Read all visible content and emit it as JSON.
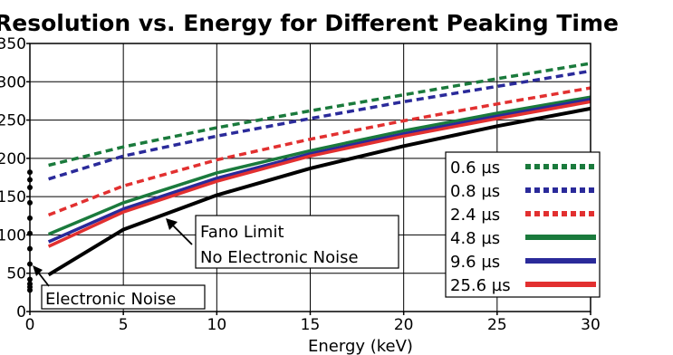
{
  "chart_data": {
    "type": "line",
    "title": "Resolution vs. Energy for Different Peaking Time",
    "xlabel": "Energy (keV)",
    "ylabel": "",
    "xlim": [
      0,
      30
    ],
    "ylim": [
      0,
      350
    ],
    "xticks": [
      0,
      5,
      10,
      15,
      20,
      25,
      30
    ],
    "yticks": [
      0,
      50,
      100,
      150,
      200,
      250,
      300,
      350
    ],
    "grid": true,
    "legend_position": "right",
    "x": [
      1,
      5,
      10,
      15,
      20,
      25,
      30
    ],
    "series": [
      {
        "name": "0.6 µs",
        "color": "#1a7a3c",
        "style": "dashed",
        "values": [
          191,
          215,
          240,
          262,
          283,
          304,
          324
        ]
      },
      {
        "name": "0.8 µs",
        "color": "#2a2a9a",
        "style": "dashed",
        "values": [
          173,
          203,
          229,
          252,
          274,
          294,
          314
        ]
      },
      {
        "name": "2.4 µs",
        "color": "#e23030",
        "style": "dashed",
        "values": [
          126,
          164,
          198,
          225,
          249,
          271,
          292
        ]
      },
      {
        "name": "4.8 µs",
        "color": "#1a7a3c",
        "style": "solid",
        "values": [
          101,
          142,
          181,
          210,
          236,
          259,
          280
        ]
      },
      {
        "name": "9.6 µs",
        "color": "#2a2a9a",
        "style": "solid",
        "values": [
          91,
          134,
          174,
          206,
          232,
          255,
          277
        ]
      },
      {
        "name": "25.6 µs",
        "color": "#e23030",
        "style": "solid",
        "values": [
          85,
          130,
          170,
          203,
          229,
          252,
          274
        ]
      },
      {
        "name": "Fano Limit",
        "color": "#000000",
        "style": "solid",
        "values": [
          48,
          107,
          152,
          187,
          216,
          242,
          265
        ]
      }
    ],
    "electronic_noise_points": [
      28,
      32,
      36,
      42,
      62,
      82,
      102,
      122,
      142,
      162,
      172,
      182
    ],
    "annotations": {
      "fano_line1": "Fano Limit",
      "fano_line2": "No Electronic Noise",
      "noise": "Electronic Noise"
    }
  }
}
